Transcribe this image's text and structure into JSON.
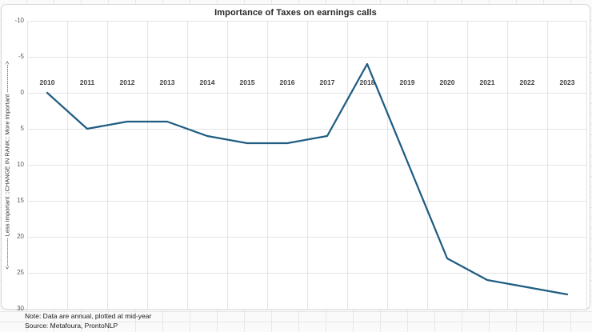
{
  "chart_data": {
    "type": "line",
    "title": "Importance of Taxes on earnings calls",
    "categories": [
      "2010",
      "2011",
      "2012",
      "2013",
      "2014",
      "2015",
      "2016",
      "2017",
      "2018",
      "2019",
      "2020",
      "2021",
      "2022",
      "2023"
    ],
    "values": [
      0,
      5,
      4,
      4,
      6,
      7,
      7,
      6,
      -4,
      9.5,
      23,
      26,
      27,
      28
    ],
    "xlabel": "",
    "ylabel": "<-------------- Less Important  ::CHANGE IN RANK::  More Important -------------->",
    "y_ticks": [
      -10,
      -5,
      0,
      5,
      10,
      15,
      20,
      25,
      30
    ],
    "ylim": [
      -10,
      30
    ],
    "y_axis_inverted": true,
    "grid": true,
    "legend": "none",
    "line_color": "#1f5c82"
  },
  "notes": {
    "note": "Note: Data are annual, plotted at mid-year",
    "source": "Source: Metafoura, ProntoNLP"
  }
}
